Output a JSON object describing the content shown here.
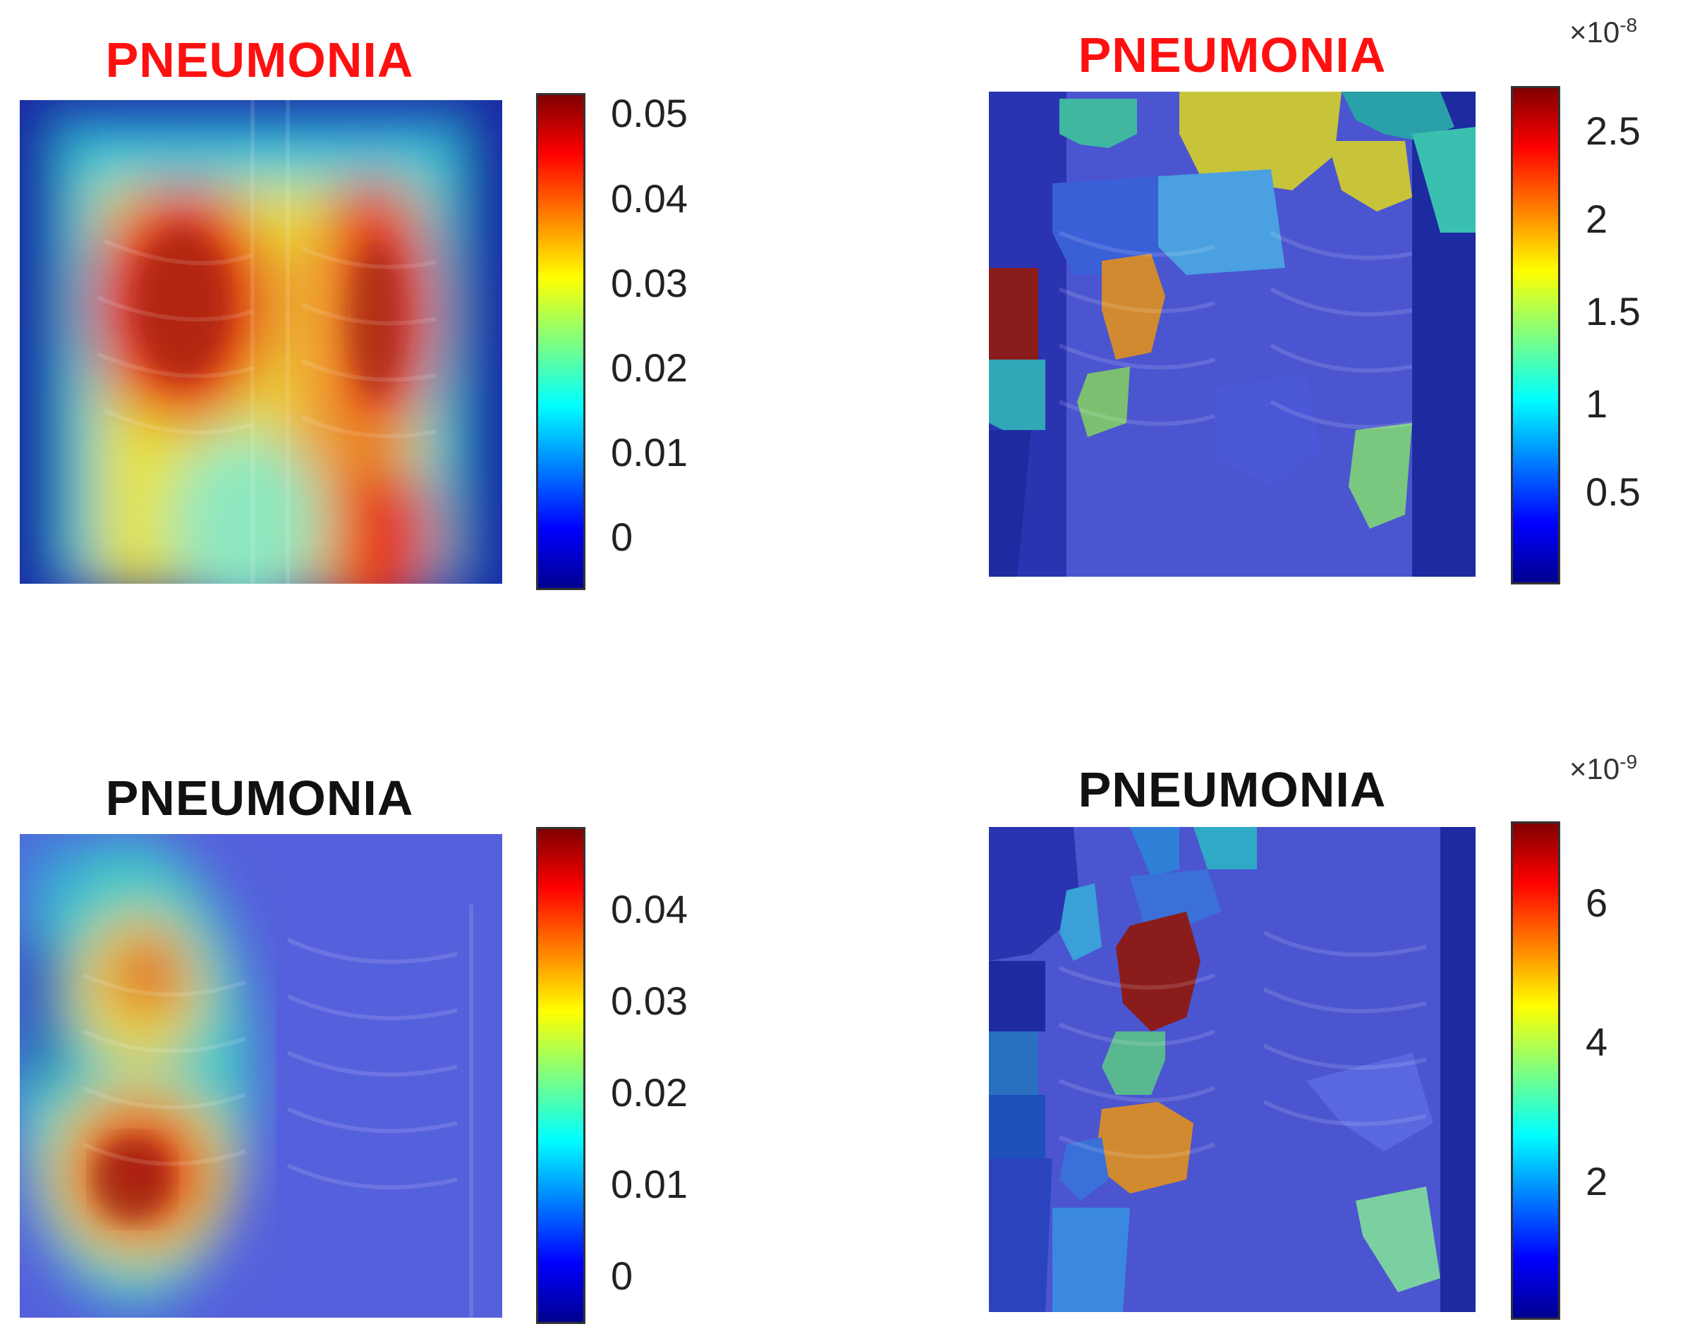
{
  "panels": [
    {
      "title": "PNEUMONIA",
      "title_color": "#ff1010",
      "method": "Grad-CAM heatmap overlay",
      "colorbar": {
        "ticks": [
          "0.05",
          "0.04",
          "0.03",
          "0.02",
          "0.01",
          "0"
        ],
        "exponent": ""
      }
    },
    {
      "title": "PNEUMONIA",
      "title_color": "#ff1010",
      "method": "superpixel LIME overlay",
      "colorbar": {
        "ticks": [
          "2.5",
          "2",
          "1.5",
          "1",
          "0.5"
        ],
        "exponent_base": "×10",
        "exponent_power": "-8"
      }
    },
    {
      "title": "PNEUMONIA",
      "title_color": "#111111",
      "method": "Grad-CAM heatmap overlay",
      "colorbar": {
        "ticks": [
          "0.04",
          "0.03",
          "0.02",
          "0.01",
          "0"
        ],
        "exponent": ""
      }
    },
    {
      "title": "PNEUMONIA",
      "title_color": "#111111",
      "method": "superpixel LIME overlay",
      "colorbar": {
        "ticks": [
          "6",
          "4",
          "2"
        ],
        "exponent_base": "×10",
        "exponent_power": "-9"
      }
    }
  ],
  "colormap": [
    "#00008f",
    "#0000ff",
    "#00ffff",
    "#ffff00",
    "#ff0000",
    "#800000"
  ]
}
